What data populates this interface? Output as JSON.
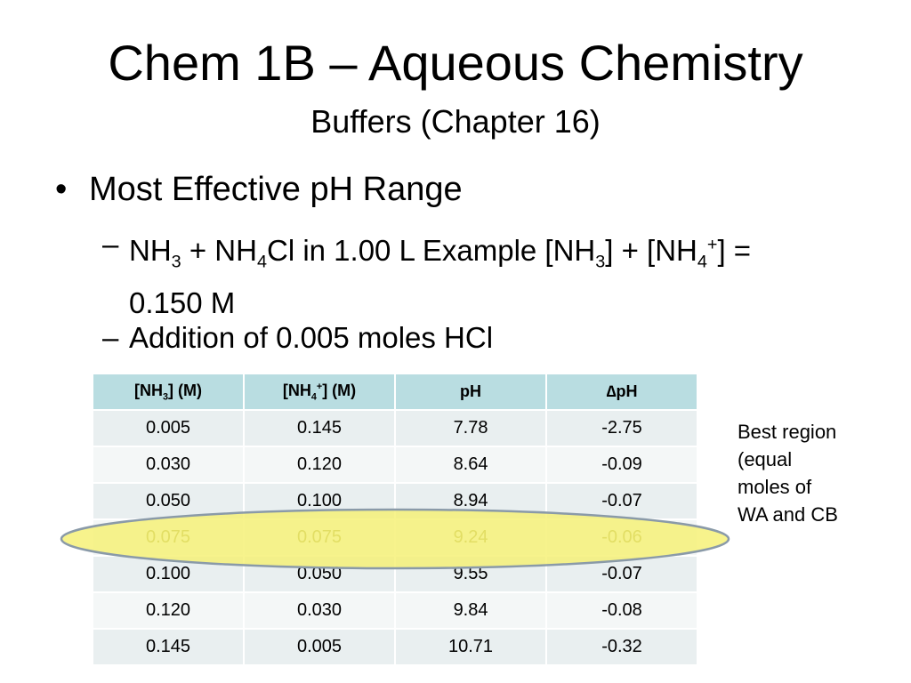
{
  "title": "Chem 1B – Aqueous Chemistry",
  "subtitle": "Buffers (Chapter 16)",
  "bullet": "Most Effective pH Range",
  "sub_bullets": [
    [
      "NH",
      {
        "sub": "3"
      },
      " + NH",
      {
        "sub": "4"
      },
      "Cl in 1.00 L Example [NH",
      {
        "sub": "3"
      },
      "] + [NH",
      {
        "sub": "4"
      },
      {
        "sup": "+"
      },
      "] = 0.150 M"
    ],
    [
      "Addition of 0.005 moles HCl"
    ]
  ],
  "table": {
    "headers": [
      [
        "[NH",
        {
          "sub": "3"
        },
        "] (M)"
      ],
      [
        "[NH",
        {
          "sub": "4"
        },
        {
          "sup": "+"
        },
        "] (M)"
      ],
      [
        "pH"
      ],
      [
        "∆pH"
      ]
    ],
    "rows": [
      [
        "0.005",
        "0.145",
        "7.78",
        "-2.75"
      ],
      [
        "0.030",
        "0.120",
        "8.64",
        "-0.09"
      ],
      [
        "0.050",
        "0.100",
        "8.94",
        "-0.07"
      ],
      [
        "0.075",
        "0.075",
        "9.24",
        "-0.06"
      ],
      [
        "0.100",
        "0.050",
        "9.55",
        "-0.07"
      ],
      [
        "0.120",
        "0.030",
        "9.84",
        "-0.08"
      ],
      [
        "0.145",
        "0.005",
        "10.71",
        "-0.32"
      ]
    ],
    "highlight_row": 3
  },
  "note": [
    "Best region",
    "(equal",
    "moles of",
    "WA and CB"
  ]
}
